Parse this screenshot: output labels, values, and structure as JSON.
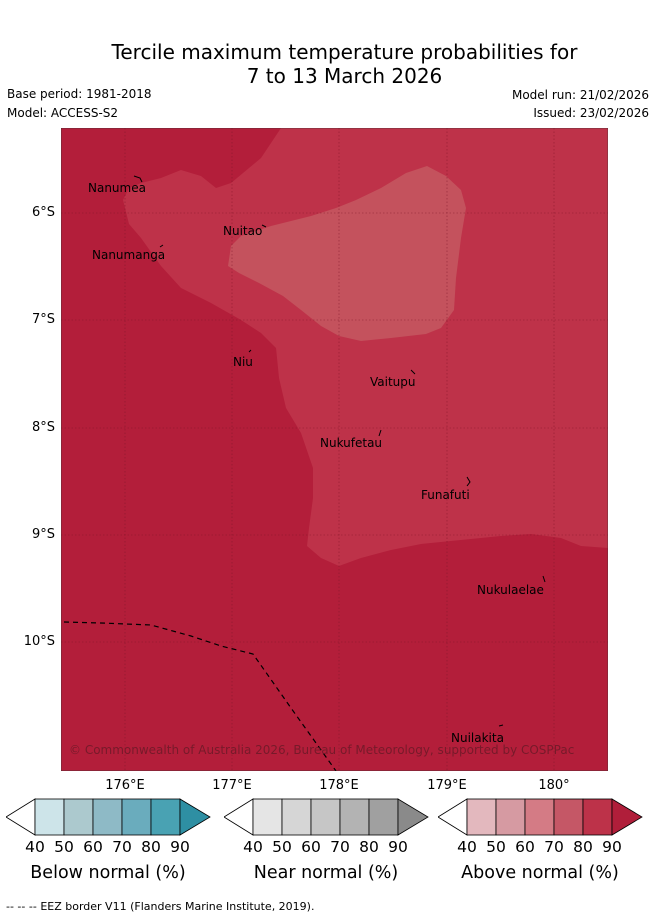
{
  "title": {
    "line1": "Tercile maximum temperature probabilities for",
    "line2": "7 to 13 March 2026"
  },
  "meta": {
    "base_period": "Base period: 1981-2018",
    "model": "Model: ACCESS-S2",
    "model_run": "Model run: 21/02/2026",
    "issued": "Issued: 23/02/2026"
  },
  "map": {
    "lat_labels": [
      "6°S",
      "7°S",
      "8°S",
      "9°S",
      "10°S"
    ],
    "lon_labels": [
      "176°E",
      "177°E",
      "178°E",
      "179°E",
      "180°"
    ],
    "places": [
      "Nanumea",
      "Nuitao",
      "Nanumanga",
      "Niu",
      "Vaitupu",
      "Nukufetau",
      "Funafuti",
      "Nukulaelae",
      "Nuilakita"
    ],
    "copyright": "© Commonwealth of Australia 2026, Bureau of Meteorology, supported by COSPPac",
    "colors": {
      "above_80": "#b31e3a",
      "above_70": "#be3249",
      "above_60": "#c4525d"
    }
  },
  "colorbars": [
    {
      "label": "Below normal (%)",
      "ticks": [
        "40",
        "50",
        "60",
        "70",
        "80",
        "90"
      ],
      "colors": [
        "#ffffff",
        "#cde4e9",
        "#acc9ce",
        "#8ebac6",
        "#6aacbd",
        "#49a2b3",
        "#2e8fa3"
      ]
    },
    {
      "label": "Near normal (%)",
      "ticks": [
        "40",
        "50",
        "60",
        "70",
        "80",
        "90"
      ],
      "colors": [
        "#ffffff",
        "#e5e5e5",
        "#d6d6d6",
        "#c6c6c6",
        "#b3b3b3",
        "#a0a0a0",
        "#8a8a8a"
      ]
    },
    {
      "label": "Above normal (%)",
      "ticks": [
        "40",
        "50",
        "60",
        "70",
        "80",
        "90"
      ],
      "colors": [
        "#ffffff",
        "#e3b8be",
        "#d69aa2",
        "#d47b85",
        "#c55766",
        "#bd3249",
        "#b01e3a"
      ]
    }
  ],
  "footer": {
    "eez_legend_symbol": "--  --  --",
    "eez_note": "EEZ border V11 (Flanders Marine Institute, 2019)."
  }
}
